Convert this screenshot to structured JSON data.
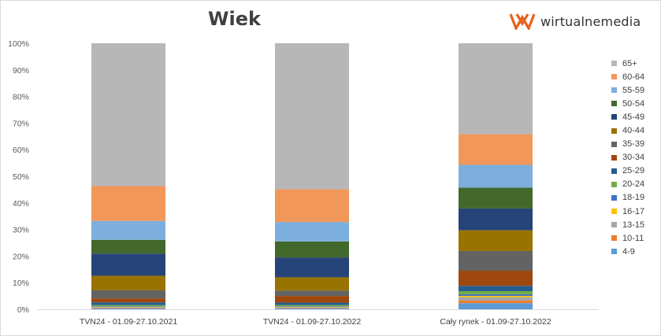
{
  "title": "Wiek",
  "logo": {
    "text": "wirtualnemedia",
    "icon": "wm-logo-icon",
    "color": "#e8611a"
  },
  "chart_data": {
    "type": "bar",
    "stacked": true,
    "ylim": [
      0,
      100
    ],
    "yticks": [
      "0%",
      "10%",
      "20%",
      "30%",
      "40%",
      "50%",
      "60%",
      "70%",
      "80%",
      "90%",
      "100%"
    ],
    "categories": [
      "TVN24 - 01.09-27.10.2021",
      "TVN24 - 01.09-27.10.2022",
      "Cały rynek - 01.09-27.10.2022"
    ],
    "legend_position": "right",
    "grid": false,
    "series": [
      {
        "name": "4-9",
        "color": "#5b9bd5",
        "values": [
          0.3,
          0.3,
          2.3
        ]
      },
      {
        "name": "10-11",
        "color": "#ed7d31",
        "values": [
          0.2,
          0.2,
          1.0
        ]
      },
      {
        "name": "13-15",
        "color": "#a5a5a5",
        "values": [
          0.3,
          0.3,
          1.2
        ]
      },
      {
        "name": "16-17",
        "color": "#ffc000",
        "values": [
          0.1,
          0.1,
          0.5
        ]
      },
      {
        "name": "18-19",
        "color": "#4472c4",
        "values": [
          0.2,
          0.2,
          0.6
        ]
      },
      {
        "name": "20-24",
        "color": "#70ad47",
        "values": [
          0.5,
          0.5,
          1.2
        ]
      },
      {
        "name": "25-29",
        "color": "#255e91",
        "values": [
          1.0,
          0.9,
          2.0
        ]
      },
      {
        "name": "30-34",
        "color": "#9e480e",
        "values": [
          1.5,
          2.5,
          5.7
        ]
      },
      {
        "name": "35-39",
        "color": "#636363",
        "values": [
          3.0,
          2.0,
          7.4
        ]
      },
      {
        "name": "40-44",
        "color": "#997300",
        "values": [
          5.5,
          5.0,
          7.8
        ]
      },
      {
        "name": "45-49",
        "color": "#264478",
        "values": [
          8.3,
          7.5,
          8.2
        ]
      },
      {
        "name": "50-54",
        "color": "#43682b",
        "values": [
          5.2,
          6.0,
          7.8
        ]
      },
      {
        "name": "55-59",
        "color": "#7cafdd",
        "values": [
          7.1,
          7.3,
          8.6
        ]
      },
      {
        "name": "60-64",
        "color": "#f1975a",
        "values": [
          13.1,
          12.3,
          11.5
        ]
      },
      {
        "name": "65+",
        "color": "#b7b7b7",
        "values": [
          53.7,
          54.9,
          34.2
        ]
      }
    ]
  }
}
